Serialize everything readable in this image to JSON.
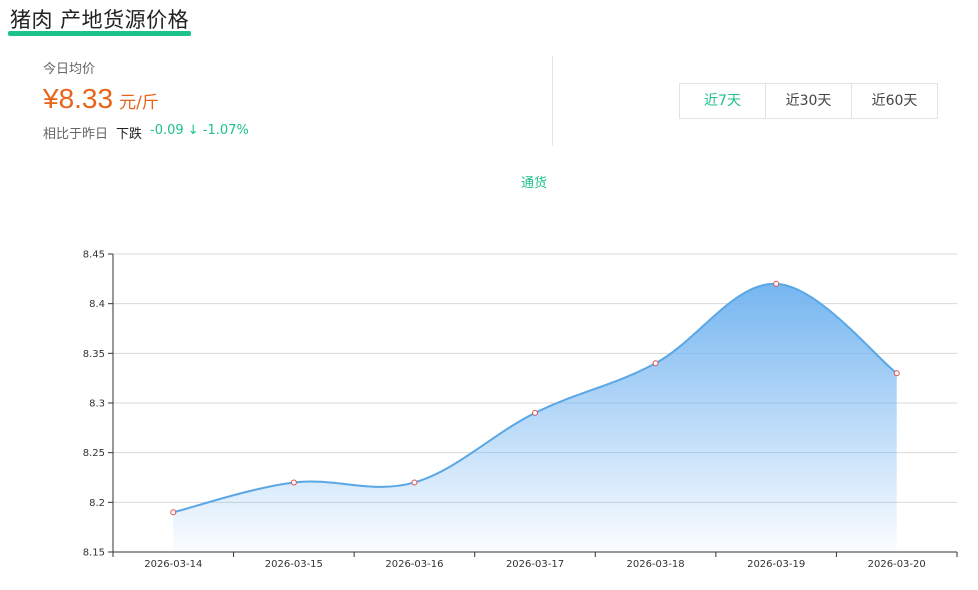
{
  "header": {
    "title": "猪肉 产地货源价格"
  },
  "summary": {
    "avg_label": "今日均价",
    "price": "¥8.33",
    "unit": "元/斤",
    "compare_label": "相比于昨日",
    "trend": "下跌",
    "change": "-0.09 ↓ -1.07%"
  },
  "range_tabs": [
    {
      "label": "近7天",
      "active": true
    },
    {
      "label": "近30天",
      "active": false
    },
    {
      "label": "近60天",
      "active": false
    }
  ],
  "colors": {
    "accent": "#1ec28b",
    "price": "#e8641b",
    "line": "#5aa7e6"
  },
  "chart_data": {
    "type": "area",
    "title": "",
    "xlabel": "",
    "ylabel": "",
    "categories": [
      "2026-03-14",
      "2026-03-15",
      "2026-03-16",
      "2026-03-17",
      "2026-03-18",
      "2026-03-19",
      "2026-03-20"
    ],
    "series": [
      {
        "name": "通货",
        "values": [
          8.19,
          8.22,
          8.22,
          8.29,
          8.34,
          8.42,
          8.33
        ]
      }
    ],
    "ylim": [
      8.15,
      8.45
    ],
    "yticks": [
      "8.15",
      "8.2",
      "8.25",
      "8.3",
      "8.35",
      "8.4",
      "8.45"
    ],
    "grid": true,
    "legend": "top-center"
  }
}
